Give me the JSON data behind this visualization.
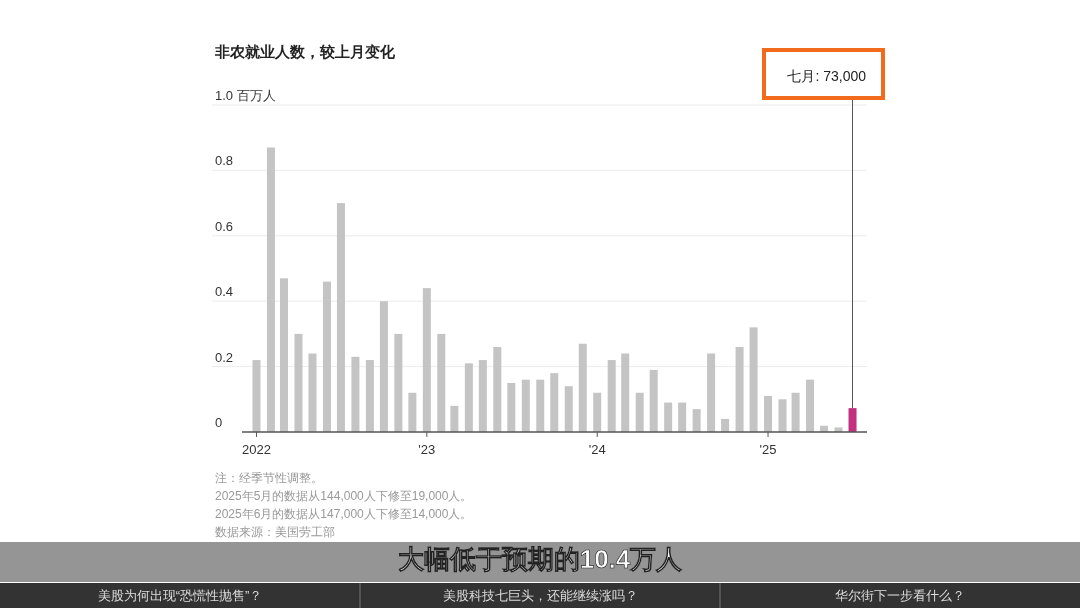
{
  "chart_data": {
    "type": "bar",
    "title": "非农就业人数，较上月变化",
    "x": [
      "2022-01",
      "2022-02",
      "2022-03",
      "2022-04",
      "2022-05",
      "2022-06",
      "2022-07",
      "2022-08",
      "2022-09",
      "2022-10",
      "2022-11",
      "2022-12",
      "2023-01",
      "2023-02",
      "2023-03",
      "2023-04",
      "2023-05",
      "2023-06",
      "2023-07",
      "2023-08",
      "2023-09",
      "2023-10",
      "2023-11",
      "2023-12",
      "2024-01",
      "2024-02",
      "2024-03",
      "2024-04",
      "2024-05",
      "2024-06",
      "2024-07",
      "2024-08",
      "2024-09",
      "2024-10",
      "2024-11",
      "2024-12",
      "2025-01",
      "2025-02",
      "2025-03",
      "2025-04",
      "2025-05",
      "2025-06",
      "2025-07"
    ],
    "values": [
      0.22,
      0.87,
      0.47,
      0.3,
      0.24,
      0.46,
      0.7,
      0.23,
      0.22,
      0.4,
      0.3,
      0.12,
      0.44,
      0.3,
      0.08,
      0.21,
      0.22,
      0.26,
      0.15,
      0.16,
      0.16,
      0.18,
      0.14,
      0.27,
      0.12,
      0.22,
      0.24,
      0.12,
      0.19,
      0.09,
      0.09,
      0.07,
      0.24,
      0.04,
      0.26,
      0.32,
      0.11,
      0.1,
      0.12,
      0.16,
      0.019,
      0.014,
      0.073
    ],
    "colors": [
      "#c4c4c4",
      "#c4c4c4",
      "#c4c4c4",
      "#c4c4c4",
      "#c4c4c4",
      "#c4c4c4",
      "#c4c4c4",
      "#c4c4c4",
      "#c4c4c4",
      "#c4c4c4",
      "#c4c4c4",
      "#c4c4c4",
      "#c4c4c4",
      "#c4c4c4",
      "#c4c4c4",
      "#c4c4c4",
      "#c4c4c4",
      "#c4c4c4",
      "#c4c4c4",
      "#c4c4c4",
      "#c4c4c4",
      "#c4c4c4",
      "#c4c4c4",
      "#c4c4c4",
      "#c4c4c4",
      "#c4c4c4",
      "#c4c4c4",
      "#c4c4c4",
      "#c4c4c4",
      "#c4c4c4",
      "#c4c4c4",
      "#c4c4c4",
      "#c4c4c4",
      "#c4c4c4",
      "#c4c4c4",
      "#c4c4c4",
      "#c4c4c4",
      "#c4c4c4",
      "#c4c4c4",
      "#c4c4c4",
      "#c4c4c4",
      "#c4c4c4",
      "#c2307f"
    ],
    "xlim": [
      "2021-12-01",
      "2025-08-01"
    ],
    "xticks": [
      {
        "value": "2022-01",
        "label": "2022"
      },
      {
        "value": "2023-01",
        "label": "'23"
      },
      {
        "value": "2024-01",
        "label": "'24"
      },
      {
        "value": "2025-01",
        "label": "'25"
      }
    ],
    "ylim": [
      0,
      1
    ],
    "yticks": [
      0,
      0.2,
      0.4,
      0.6,
      0.8,
      {
        "value": 1,
        "label": "1.0 百万人"
      }
    ],
    "grid": "y",
    "annotations": [
      "注：经季节性调整。",
      "2025年5月的数据从144,000人下修至19,000人。",
      "2025年6月的数据从147,000人下修至14,000人。",
      "数据来源：美国劳工部",
      {
        "text": "七月: 73,000",
        "x": "2025-07",
        "y": 0.073
      },
      "大幅低于预期的10.4万人",
      "美股为何出现“恐慌性抛售”？",
      "美股科技七巨头，还能继续涨吗？",
      "华尔街下一步看什么？"
    ]
  }
}
